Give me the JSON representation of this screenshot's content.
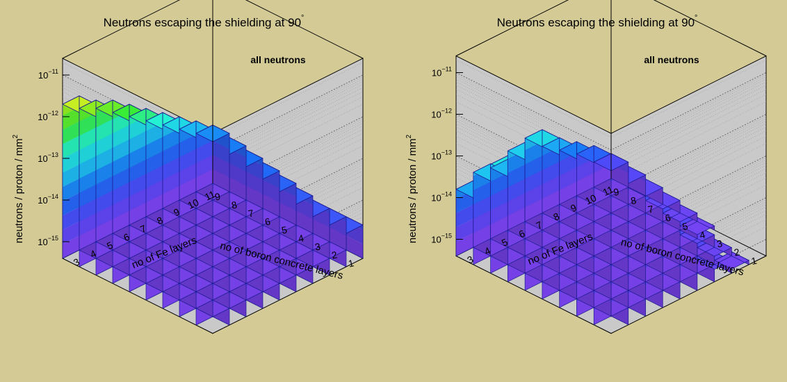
{
  "chart_data": [
    {
      "type": "lego3d",
      "title": "Neutrons escaping the shielding at 90",
      "title_superscript": "°",
      "label": "all neutrons",
      "ylabel": "neutrons / proton / mm",
      "ylabel_superscript": "2",
      "xlabel_left": "no of boron concrete layers",
      "xlabel_right": "no of Fe layers",
      "log_scale": true,
      "z_ticks": [
        {
          "base": "10",
          "exp": "−15"
        },
        {
          "base": "10",
          "exp": "−14"
        },
        {
          "base": "10",
          "exp": "−13"
        },
        {
          "base": "10",
          "exp": "−12"
        },
        {
          "base": "10",
          "exp": "−11"
        }
      ],
      "boron_layers": [
        "1",
        "2",
        "3",
        "4",
        "5",
        "6",
        "7",
        "8",
        "9"
      ],
      "fe_layers": [
        "3",
        "4",
        "5",
        "6",
        "7",
        "8",
        "9",
        "10",
        "11"
      ],
      "heights_log10": [
        [
          -13.5,
          -13.7,
          -14.0,
          -14.3,
          -14.5,
          -14.5,
          -14.6,
          -14.6,
          -14.6
        ],
        [
          -13.3,
          -13.4,
          -13.7,
          -13.9,
          -14.1,
          -14.3,
          -14.5,
          -14.6,
          -14.6
        ],
        [
          -13.1,
          -13.2,
          -13.5,
          -13.6,
          -13.8,
          -14.1,
          -14.3,
          -14.4,
          -14.6
        ],
        [
          -12.9,
          -13.0,
          -13.2,
          -13.4,
          -13.7,
          -13.9,
          -14.1,
          -14.3,
          -14.5
        ],
        [
          -12.6,
          -12.8,
          -13.0,
          -13.2,
          -13.5,
          -13.7,
          -13.9,
          -14.2,
          -14.4
        ],
        [
          -12.4,
          -12.6,
          -12.8,
          -13.0,
          -13.3,
          -13.5,
          -13.8,
          -14.0,
          -14.3
        ],
        [
          -12.2,
          -12.4,
          -12.6,
          -12.8,
          -13.1,
          -13.3,
          -13.6,
          -13.9,
          -14.2
        ],
        [
          -12.0,
          -12.2,
          -12.4,
          -12.6,
          -12.9,
          -13.2,
          -13.5,
          -13.8,
          -14.1
        ],
        [
          -11.7,
          -12.0,
          -12.2,
          -12.5,
          -12.8,
          -13.1,
          -13.4,
          -13.7,
          -14.0
        ]
      ]
    },
    {
      "type": "lego3d",
      "title": "Neutrons escaping the shielding at 90",
      "title_superscript": "°",
      "label": "all neutrons",
      "ylabel": "neutrons / proton / mm",
      "ylabel_superscript": "2",
      "xlabel_left": "no of boron concrete layers",
      "xlabel_right": "no of Fe layers",
      "log_scale": true,
      "z_ticks": [
        {
          "base": "10",
          "exp": "−15"
        },
        {
          "base": "10",
          "exp": "−14"
        },
        {
          "base": "10",
          "exp": "−13"
        },
        {
          "base": "10",
          "exp": "−12"
        },
        {
          "base": "10",
          "exp": "−11"
        }
      ],
      "boron_layers": [
        "1",
        "2",
        "3",
        "4",
        "5",
        "6",
        "7",
        "8",
        "9"
      ],
      "fe_layers": [
        "3",
        "4",
        "5",
        "6",
        "7",
        "8",
        "9",
        "10",
        "11"
      ],
      "heights_log10": [
        [
          -14.2,
          -14.3,
          -14.4,
          -14.6,
          -14.7,
          -14.9,
          -15.1,
          -15.3,
          -15.6
        ],
        [
          -14.0,
          -14.0,
          -14.2,
          -14.4,
          -14.5,
          -14.7,
          -14.9,
          -15.2,
          -15.5
        ],
        [
          -13.8,
          -13.8,
          -13.9,
          -14.1,
          -14.3,
          -14.5,
          -14.8,
          -15.1,
          -15.4
        ],
        [
          -13.7,
          -13.6,
          -13.7,
          -13.9,
          -14.2,
          -14.4,
          -14.6,
          -14.9,
          -15.3
        ],
        [
          -13.5,
          -13.4,
          -13.5,
          -13.7,
          -14.0,
          -14.2,
          -14.5,
          -14.8,
          -15.2
        ],
        [
          -13.6,
          -13.3,
          -13.4,
          -13.6,
          -13.8,
          -14.1,
          -14.4,
          -14.7,
          -15.1
        ],
        [
          -13.4,
          -13.5,
          -13.2,
          -13.4,
          -13.7,
          -14.0,
          -14.3,
          -14.6,
          -15.0
        ],
        [
          -13.6,
          -13.2,
          -13.4,
          -13.3,
          -13.6,
          -13.9,
          -14.2,
          -14.5,
          -14.9
        ],
        [
          -13.8,
          -13.6,
          -13.7,
          -13.5,
          -13.4,
          -13.8,
          -14.1,
          -14.4,
          -14.8
        ]
      ]
    }
  ]
}
